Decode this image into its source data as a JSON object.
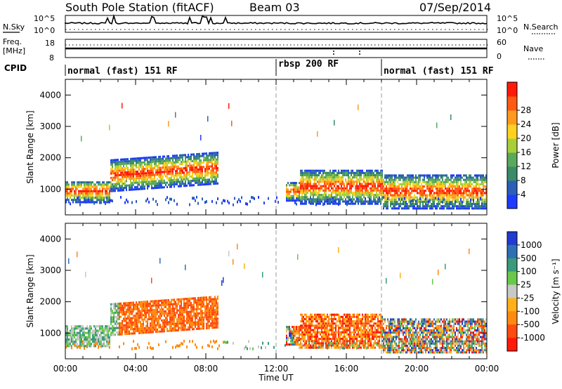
{
  "header": {
    "title": "South Pole Station (fitACF)",
    "beam": "Beam 03",
    "date": "07/Sep/2014"
  },
  "side_labels": {
    "nsky": "N.Sky",
    "freq": "Freq.",
    "freq_unit": "[MHz]",
    "cpid": "CPID",
    "nsearch": "N.Search",
    "nave": "Nave"
  },
  "top_ticks": {
    "noise_hi": "10^5",
    "noise_lo": "10^0",
    "freq_hi": "18",
    "freq_lo": "8",
    "nave_hi": "60",
    "nave_lo": "0"
  },
  "cpid_segments": [
    {
      "label": "normal (fast) 151 RF",
      "start_h": 0,
      "end_h": 12
    },
    {
      "label": "rbsp 200 RF",
      "start_h": 12,
      "end_h": 18
    },
    {
      "label": "normal (fast) 151 RF",
      "start_h": 18,
      "end_h": 24
    }
  ],
  "chart_data": [
    {
      "type": "heatmap",
      "name": "Power",
      "xlabel": "",
      "ylabel": "Slant Range [km]",
      "xlim": [
        0,
        24
      ],
      "ylim": [
        180,
        4500
      ],
      "yticks": [
        "1000",
        "2000",
        "3000",
        "4000"
      ],
      "colorbar": {
        "label": "Power [dB]",
        "ticks": [
          "4",
          "8",
          "12",
          "16",
          "20",
          "24",
          "28"
        ],
        "colors": [
          "#1f3bff",
          "#2b5fb8",
          "#3b8a6a",
          "#5aa85a",
          "#a8cf3a",
          "#ffd21f",
          "#ff9a1f",
          "#ff5a14",
          "#ff1a0a"
        ]
      },
      "mode_change_hours": [
        12,
        18
      ]
    },
    {
      "type": "heatmap",
      "name": "Velocity",
      "xlabel": "Time UT",
      "ylabel": "Slant Range [km]",
      "xlim": [
        0,
        24
      ],
      "ylim": [
        180,
        4500
      ],
      "yticks": [
        "1000",
        "2000",
        "3000",
        "4000"
      ],
      "xticks": [
        "00:00",
        "04:00",
        "08:00",
        "12:00",
        "16:00",
        "20:00",
        "00:00"
      ],
      "colorbar": {
        "label": "Velocity [m s⁻¹]",
        "ticks": [
          "1000",
          "500",
          "100",
          "25",
          "-25",
          "-100",
          "-500",
          "-1000"
        ],
        "colors": [
          "#1f3bd0",
          "#2f6fb4",
          "#3a9a7a",
          "#6ac84a",
          "#c8c8c8",
          "#ffb01a",
          "#ff8a10",
          "#ff4a10",
          "#ff1a0a"
        ]
      },
      "mode_change_hours": [
        12,
        18
      ]
    }
  ]
}
